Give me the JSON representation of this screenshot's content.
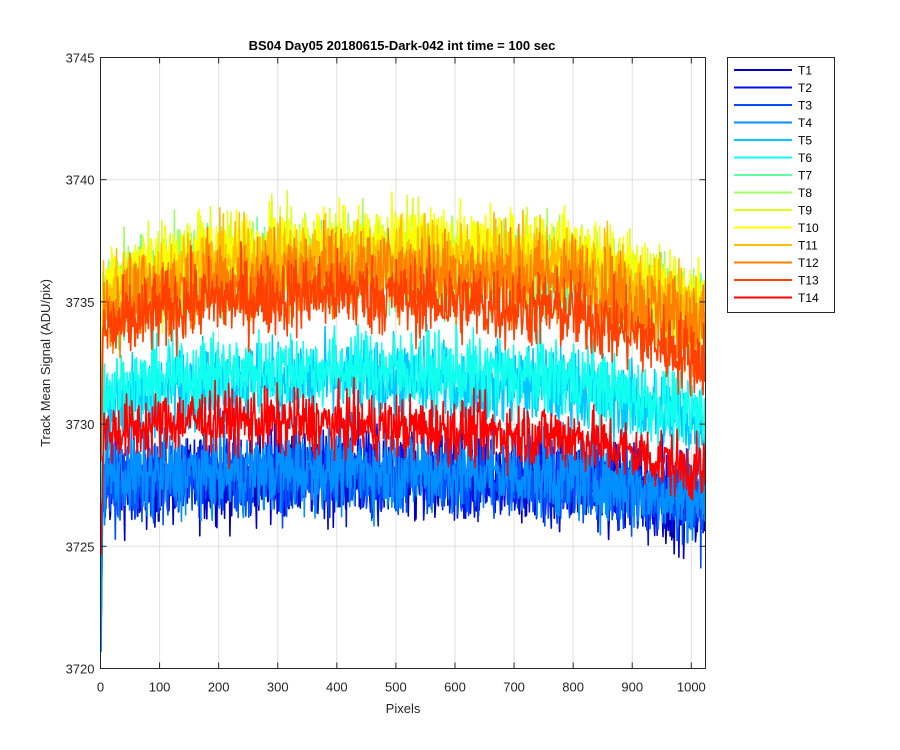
{
  "chart_data": {
    "type": "line",
    "title": "BS04 Day05 20180615-Dark-042 int time = 100 sec",
    "xlabel": "Pixels",
    "ylabel": "Track Mean Signal (ADU/pix)",
    "xlim": [
      0,
      1024
    ],
    "ylim": [
      3720,
      3745
    ],
    "xticks": [
      0,
      100,
      200,
      300,
      400,
      500,
      600,
      700,
      800,
      900,
      1000
    ],
    "yticks": [
      3720,
      3725,
      3730,
      3735,
      3740,
      3745
    ],
    "grid": true,
    "legend_position": "outside-top-right",
    "n_points": 1024,
    "series_profile_note": "",
    "series": [
      {
        "name": "T1",
        "color": "#0000c0",
        "level_at_x": {
          "0": 3727.5,
          "150": 3727.6,
          "400": 3727.9,
          "800": 3727.6,
          "1024": 3726.5
        },
        "noise_amplitude": 1.6
      },
      {
        "name": "T2",
        "color": "#0010e8",
        "level_at_x": {
          "0": 3727.8,
          "150": 3727.9,
          "400": 3728.1,
          "800": 3727.8,
          "1024": 3726.8
        },
        "noise_amplitude": 1.6
      },
      {
        "name": "T3",
        "color": "#0050ff",
        "level_at_x": {
          "0": 3727.6,
          "150": 3727.8,
          "400": 3728.0,
          "800": 3727.7,
          "1024": 3726.7
        },
        "noise_amplitude": 1.6
      },
      {
        "name": "T4",
        "color": "#0090ff",
        "level_at_x": {
          "0": 3727.9,
          "150": 3728.0,
          "400": 3728.2,
          "800": 3727.9,
          "1024": 3726.9
        },
        "noise_amplitude": 1.6
      },
      {
        "name": "T5",
        "color": "#00c8ff",
        "level_at_x": {
          "0": 3730.8,
          "150": 3731.6,
          "400": 3731.8,
          "800": 3731.5,
          "1024": 3730.0
        },
        "noise_amplitude": 1.5
      },
      {
        "name": "T6",
        "color": "#10ffef",
        "level_at_x": {
          "0": 3731.3,
          "150": 3732.0,
          "400": 3732.3,
          "800": 3731.9,
          "1024": 3730.3
        },
        "noise_amplitude": 1.5
      },
      {
        "name": "T7",
        "color": "#60ffa0",
        "level_at_x": {
          "0": 3735.0,
          "150": 3736.2,
          "400": 3736.6,
          "800": 3736.2,
          "1024": 3734.2
        },
        "noise_amplitude": 1.6
      },
      {
        "name": "T8",
        "color": "#a0ff60",
        "level_at_x": {
          "0": 3735.3,
          "150": 3736.5,
          "400": 3736.9,
          "800": 3736.5,
          "1024": 3734.5
        },
        "noise_amplitude": 1.6
      },
      {
        "name": "T9",
        "color": "#dcff20",
        "level_at_x": {
          "0": 3735.5,
          "150": 3736.7,
          "400": 3737.1,
          "800": 3736.8,
          "1024": 3734.6
        },
        "noise_amplitude": 1.6
      },
      {
        "name": "T10",
        "color": "#ffff00",
        "level_at_x": {
          "0": 3735.6,
          "150": 3736.8,
          "400": 3737.2,
          "800": 3736.9,
          "1024": 3734.7
        },
        "noise_amplitude": 1.6
      },
      {
        "name": "T11",
        "color": "#ffbf00",
        "level_at_x": {
          "0": 3735.2,
          "150": 3736.4,
          "400": 3736.8,
          "800": 3736.5,
          "1024": 3734.4
        },
        "noise_amplitude": 1.6
      },
      {
        "name": "T12",
        "color": "#ff8000",
        "level_at_x": {
          "0": 3734.5,
          "150": 3735.8,
          "400": 3736.3,
          "800": 3736.0,
          "1024": 3733.9
        },
        "noise_amplitude": 1.6
      },
      {
        "name": "T13",
        "color": "#ff4000",
        "level_at_x": {
          "0": 3733.8,
          "150": 3735.0,
          "400": 3735.4,
          "800": 3734.6,
          "1024": 3732.6
        },
        "noise_amplitude": 1.5
      },
      {
        "name": "T14",
        "color": "#ff0000",
        "level_at_x": {
          "0": 3729.6,
          "150": 3730.2,
          "400": 3730.0,
          "800": 3729.5,
          "1024": 3728.0
        },
        "noise_amplitude": 1.2
      }
    ]
  }
}
